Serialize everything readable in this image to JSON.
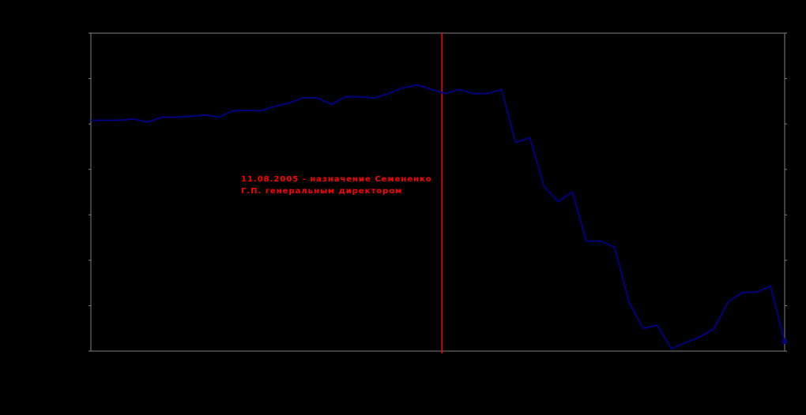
{
  "chart_data": {
    "type": "line",
    "title": "",
    "xlabel": "",
    "ylabel": "",
    "ylim": [
      0,
      7
    ],
    "y_gridlines": false,
    "y_ticks": [
      0,
      1,
      2,
      3,
      4,
      5,
      6,
      7
    ],
    "series": [
      {
        "color": "#000080",
        "values": [
          5.08,
          5.08,
          5.08,
          5.11,
          5.04,
          5.15,
          5.15,
          5.17,
          5.2,
          5.15,
          5.29,
          5.3,
          5.29,
          5.39,
          5.46,
          5.58,
          5.57,
          5.43,
          5.6,
          5.6,
          5.57,
          5.67,
          5.79,
          5.86,
          5.77,
          5.67,
          5.76,
          5.67,
          5.67,
          5.76,
          4.59,
          4.7,
          3.63,
          3.29,
          3.5,
          2.42,
          2.42,
          2.28,
          1.08,
          0.5,
          0.57,
          0.05,
          0.19,
          0.31,
          0.49,
          1.08,
          1.29,
          1.3,
          1.43,
          0.21
        ]
      }
    ],
    "event": {
      "x_index": 24.8,
      "color": "#ff0000",
      "label_line1": "11.08.2005 - назначение Семененко",
      "label_line2": "Г.П. генеральным директором"
    },
    "colors": {
      "background": "#000000",
      "axis": "#808080"
    }
  }
}
